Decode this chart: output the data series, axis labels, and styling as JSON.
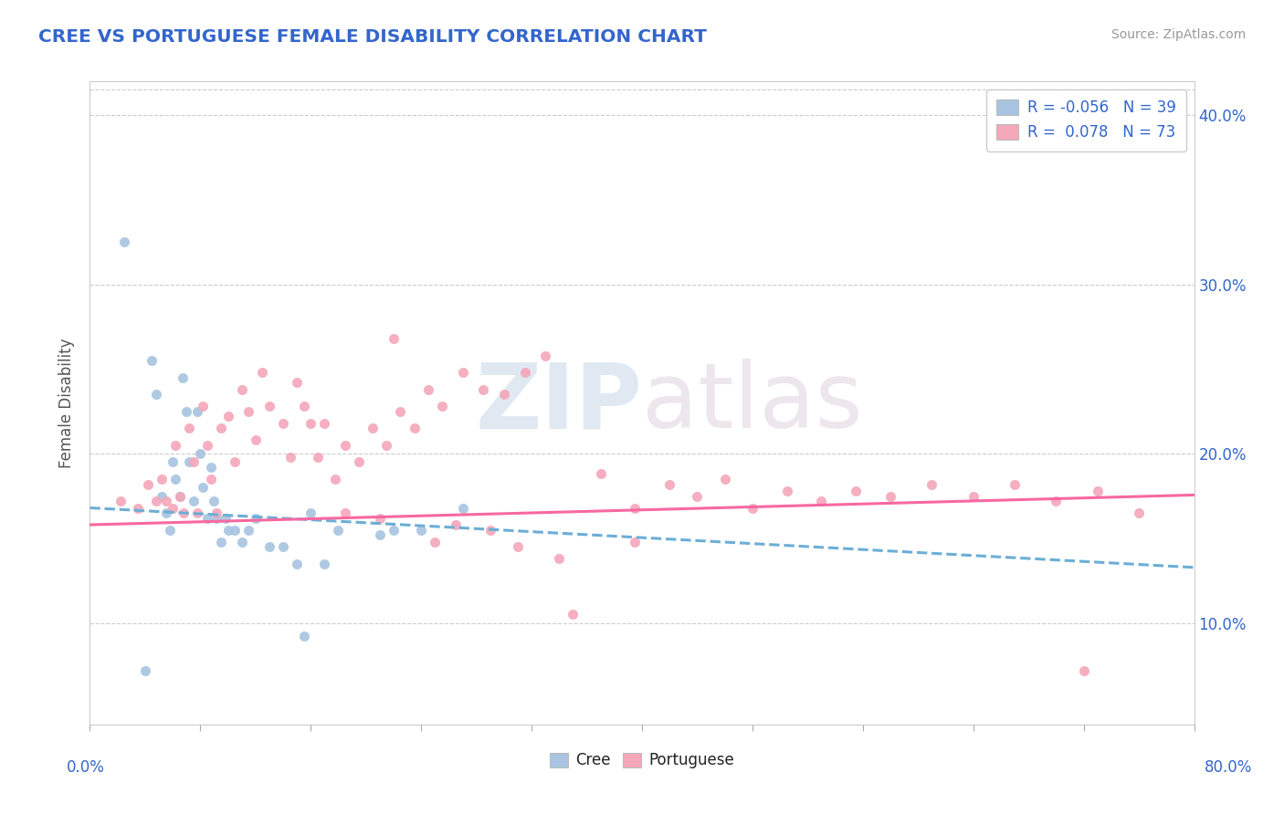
{
  "title": "CREE VS PORTUGUESE FEMALE DISABILITY CORRELATION CHART",
  "source": "Source: ZipAtlas.com",
  "ylabel": "Female Disability",
  "xlim": [
    0.0,
    0.8
  ],
  "ylim": [
    0.04,
    0.42
  ],
  "yticks": [
    0.1,
    0.2,
    0.3,
    0.4
  ],
  "ytick_labels": [
    "10.0%",
    "20.0%",
    "30.0%",
    "40.0%"
  ],
  "cree_R": -0.056,
  "cree_N": 39,
  "port_R": 0.078,
  "port_N": 73,
  "cree_color": "#a8c4e0",
  "port_color": "#f4a7b9",
  "cree_line_color": "#6baed6",
  "port_line_color": "#f768a1",
  "legend_text_color": "#3366cc",
  "title_color": "#3366cc",
  "background_color": "#ffffff",
  "grid_color": "#cccccc",
  "cree_x": [
    0.025,
    0.045,
    0.048,
    0.052,
    0.055,
    0.058,
    0.06,
    0.062,
    0.065,
    0.067,
    0.07,
    0.072,
    0.075,
    0.078,
    0.08,
    0.082,
    0.085,
    0.088,
    0.09,
    0.092,
    0.095,
    0.098,
    0.1,
    0.105,
    0.11,
    0.115,
    0.12,
    0.13,
    0.14,
    0.15,
    0.155,
    0.16,
    0.17,
    0.18,
    0.21,
    0.22,
    0.24,
    0.27,
    0.04
  ],
  "cree_y": [
    0.325,
    0.255,
    0.235,
    0.175,
    0.165,
    0.155,
    0.195,
    0.185,
    0.175,
    0.245,
    0.225,
    0.195,
    0.172,
    0.225,
    0.2,
    0.18,
    0.162,
    0.192,
    0.172,
    0.162,
    0.148,
    0.162,
    0.155,
    0.155,
    0.148,
    0.155,
    0.162,
    0.145,
    0.145,
    0.135,
    0.092,
    0.165,
    0.135,
    0.155,
    0.152,
    0.155,
    0.155,
    0.168,
    0.072
  ],
  "port_x": [
    0.022,
    0.035,
    0.042,
    0.048,
    0.052,
    0.055,
    0.06,
    0.062,
    0.065,
    0.068,
    0.072,
    0.075,
    0.078,
    0.082,
    0.085,
    0.088,
    0.092,
    0.095,
    0.1,
    0.105,
    0.11,
    0.115,
    0.12,
    0.125,
    0.13,
    0.14,
    0.145,
    0.15,
    0.155,
    0.16,
    0.165,
    0.17,
    0.178,
    0.185,
    0.195,
    0.205,
    0.215,
    0.225,
    0.235,
    0.245,
    0.255,
    0.27,
    0.285,
    0.3,
    0.315,
    0.33,
    0.35,
    0.37,
    0.395,
    0.42,
    0.44,
    0.46,
    0.48,
    0.505,
    0.53,
    0.555,
    0.58,
    0.61,
    0.64,
    0.67,
    0.7,
    0.73,
    0.76,
    0.22,
    0.34,
    0.395,
    0.265,
    0.31,
    0.21,
    0.25,
    0.185,
    0.29,
    0.72
  ],
  "port_y": [
    0.172,
    0.168,
    0.182,
    0.172,
    0.185,
    0.172,
    0.168,
    0.205,
    0.175,
    0.165,
    0.215,
    0.195,
    0.165,
    0.228,
    0.205,
    0.185,
    0.165,
    0.215,
    0.222,
    0.195,
    0.238,
    0.225,
    0.208,
    0.248,
    0.228,
    0.218,
    0.198,
    0.242,
    0.228,
    0.218,
    0.198,
    0.218,
    0.185,
    0.205,
    0.195,
    0.215,
    0.205,
    0.225,
    0.215,
    0.238,
    0.228,
    0.248,
    0.238,
    0.235,
    0.248,
    0.258,
    0.105,
    0.188,
    0.168,
    0.182,
    0.175,
    0.185,
    0.168,
    0.178,
    0.172,
    0.178,
    0.175,
    0.182,
    0.175,
    0.182,
    0.172,
    0.178,
    0.165,
    0.268,
    0.138,
    0.148,
    0.158,
    0.145,
    0.162,
    0.148,
    0.165,
    0.155,
    0.072
  ]
}
